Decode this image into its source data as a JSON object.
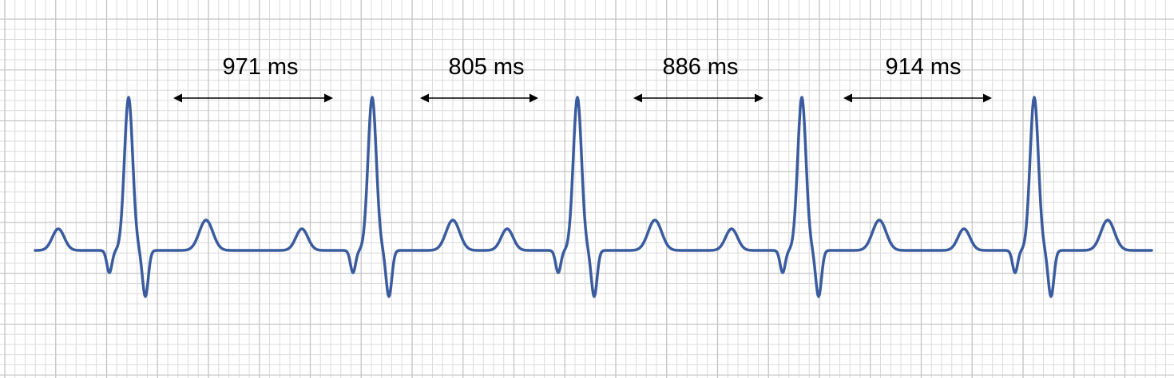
{
  "colors": {
    "background": "#ffffff",
    "grid_minor": "#dcdcdc",
    "grid_major": "#c4c4c4",
    "trace": "#3a5c9e",
    "arrow": "#000000"
  },
  "trace": {
    "beats": 5
  },
  "intervals": [
    {
      "label": "971 ms"
    },
    {
      "label": "805 ms"
    },
    {
      "label": "886 ms"
    },
    {
      "label": "914 ms"
    }
  ]
}
